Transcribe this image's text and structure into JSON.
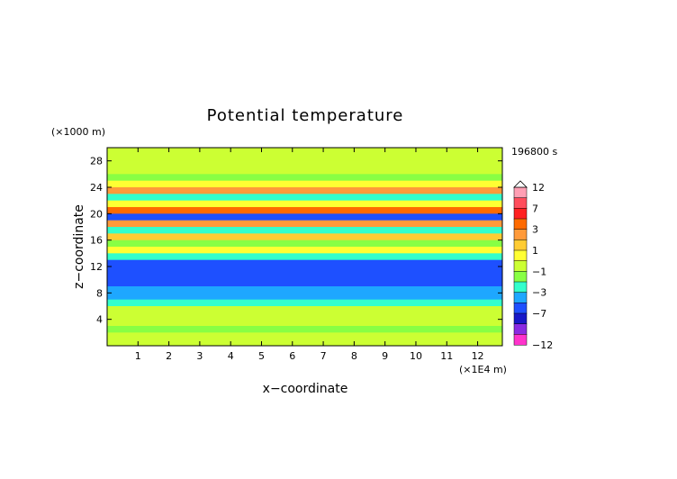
{
  "chart_data": {
    "type": "heatmap",
    "title": "Potential temperature",
    "xlabel": "x−coordinate",
    "ylabel": "z−coordinate",
    "x_unit": "(×1E4 m)",
    "y_unit": "(×1000 m)",
    "time_label": "196800 s",
    "xlim": [
      0,
      12.8
    ],
    "ylim": [
      0,
      30
    ],
    "x_ticks": [
      "1",
      "2",
      "3",
      "4",
      "5",
      "6",
      "7",
      "8",
      "9",
      "10",
      "11",
      "12"
    ],
    "y_ticks": [
      "4",
      "8",
      "12",
      "16",
      "20",
      "24",
      "28"
    ],
    "colorbar": {
      "labels": [
        "12",
        "7",
        "3",
        "1",
        "−1",
        "−3",
        "−7",
        "−12"
      ],
      "levels": [
        12,
        9,
        7,
        5,
        3,
        2,
        1,
        0,
        -1,
        -2,
        -3,
        -5,
        -7,
        -9,
        -12
      ],
      "colors": [
        "#ff9fb4",
        "#ff4d5c",
        "#ff2020",
        "#ff6a00",
        "#ff9a3a",
        "#ffcc33",
        "#ffff33",
        "#ccff33",
        "#88ff44",
        "#33ffcc",
        "#1ea7ff",
        "#1e50ff",
        "#1818c8",
        "#8a2be2",
        "#ff33cc"
      ]
    },
    "field_bands": [
      {
        "z": [
          28,
          30
        ],
        "value": 0.5
      },
      {
        "z": [
          26,
          28
        ],
        "value": 0.3
      },
      {
        "z": [
          25,
          26
        ],
        "value": -0.3
      },
      {
        "z": [
          24,
          25
        ],
        "value": 1.2
      },
      {
        "z": [
          23,
          24
        ],
        "value": 3.5
      },
      {
        "z": [
          22,
          23
        ],
        "value": -1.5
      },
      {
        "z": [
          21,
          22
        ],
        "value": 1.5
      },
      {
        "z": [
          20,
          21
        ],
        "value": 6
      },
      {
        "z": [
          19,
          20
        ],
        "value": -5
      },
      {
        "z": [
          18,
          19
        ],
        "value": 4
      },
      {
        "z": [
          17,
          18
        ],
        "value": -1.5
      },
      {
        "z": [
          16,
          17
        ],
        "value": 2.5
      },
      {
        "z": [
          15,
          16
        ],
        "value": -0.5
      },
      {
        "z": [
          14,
          15
        ],
        "value": 1
      },
      {
        "z": [
          13,
          14
        ],
        "value": -1.8
      },
      {
        "z": [
          9,
          13
        ],
        "value": -3.5
      },
      {
        "z": [
          7,
          9
        ],
        "value": -2.5
      },
      {
        "z": [
          6,
          7
        ],
        "value": -1.2
      },
      {
        "z": [
          3,
          6
        ],
        "value": 0.4
      },
      {
        "z": [
          2,
          3
        ],
        "value": -0.8
      },
      {
        "z": [
          0,
          2
        ],
        "value": 0.8
      }
    ]
  }
}
